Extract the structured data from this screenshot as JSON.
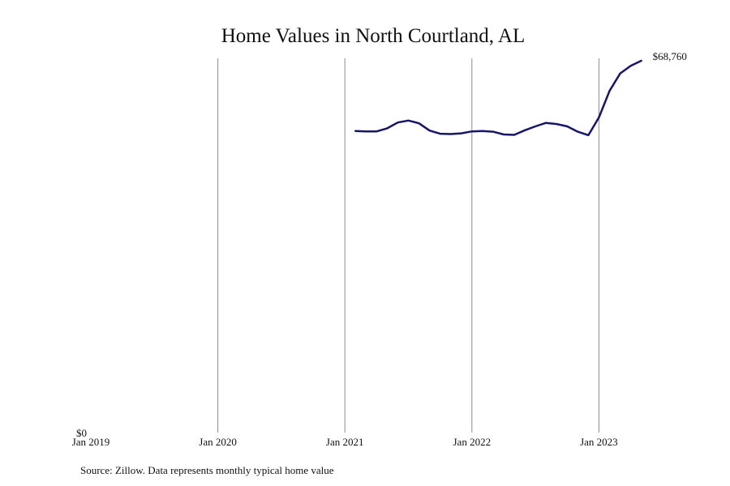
{
  "chart_data": {
    "type": "line",
    "title": "Home Values in North Courtland, AL",
    "xlabel": "",
    "ylabel": "",
    "x_tick_labels": [
      "Jan 2019",
      "Jan 2020",
      "Jan 2021",
      "Jan 2022",
      "Jan 2023"
    ],
    "y_tick_labels": [
      "$0"
    ],
    "ylim": [
      0,
      68760
    ],
    "xlim": [
      "2019-01",
      "2023-06"
    ],
    "grid": "vertical",
    "end_label": "$68,760",
    "source": "Source: Zillow. Data represents monthly typical home value",
    "color": "#17156b",
    "series": [
      {
        "x": [
          "2021-02",
          "2021-03",
          "2021-04",
          "2021-05",
          "2021-06",
          "2021-07",
          "2021-08",
          "2021-09",
          "2021-10",
          "2021-11",
          "2021-12",
          "2022-01",
          "2022-02",
          "2022-03",
          "2022-04",
          "2022-05",
          "2022-06",
          "2022-07",
          "2022-08",
          "2022-09",
          "2022-10",
          "2022-11",
          "2022-12",
          "2023-01",
          "2023-02",
          "2023-03",
          "2023-04",
          "2023-05"
        ],
        "values": [
          55770,
          55700,
          55700,
          56270,
          57340,
          57700,
          57200,
          55840,
          55270,
          55200,
          55340,
          55700,
          55770,
          55630,
          55130,
          55060,
          55910,
          56630,
          57270,
          57060,
          56630,
          55630,
          54990,
          58270,
          63180,
          66400,
          67830,
          68760
        ]
      }
    ]
  }
}
